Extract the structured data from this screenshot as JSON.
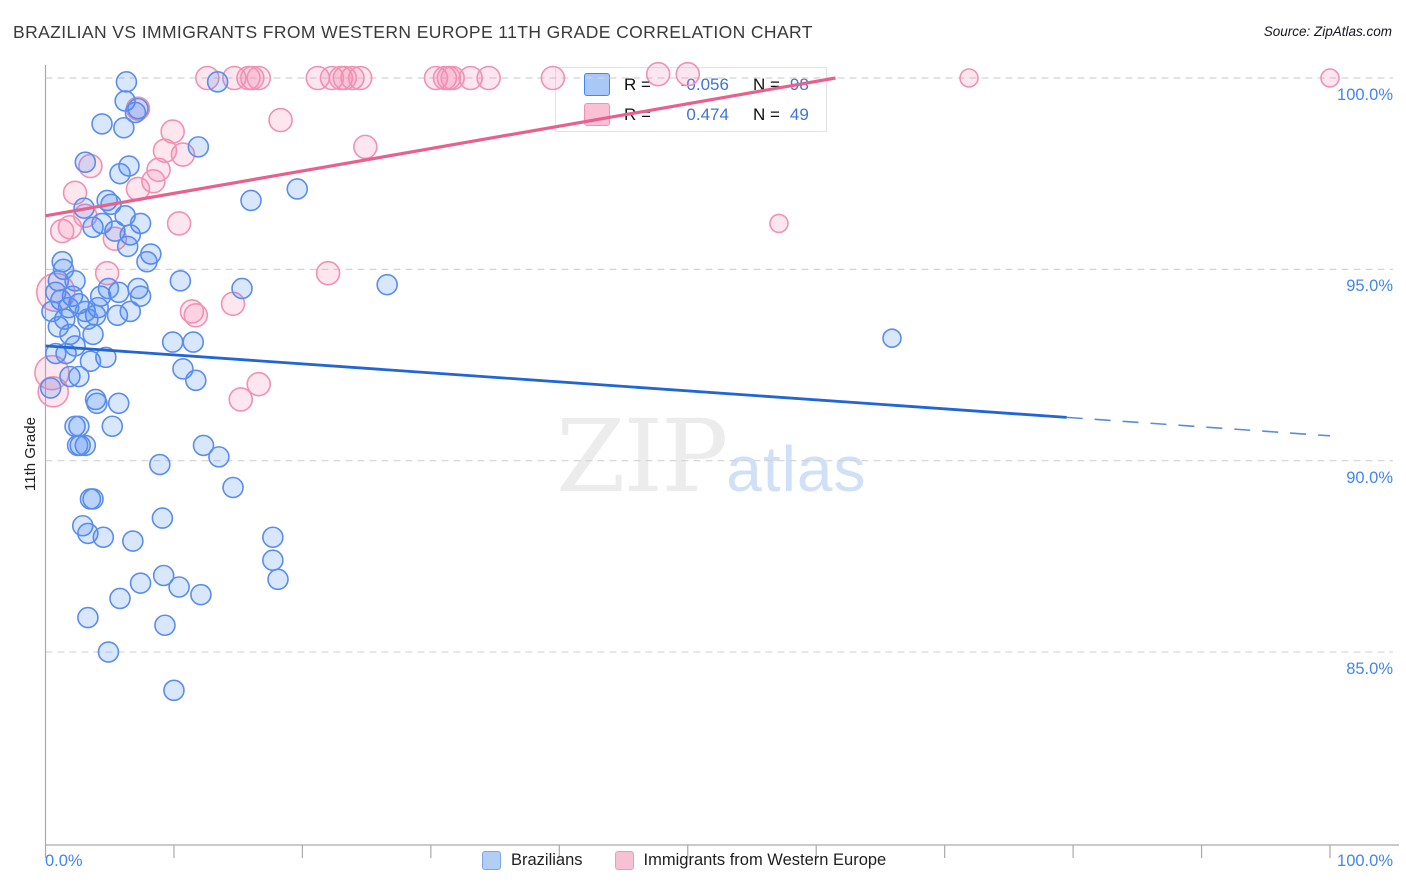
{
  "title": "BRAZILIAN VS IMMIGRANTS FROM WESTERN EUROPE 11TH GRADE CORRELATION CHART",
  "source": "Source: ZipAtlas.com",
  "watermark": {
    "zip": "ZIP",
    "atlas": "atlas"
  },
  "y_axis": {
    "label": "11th Grade",
    "tick_labels": [
      "100.0%",
      "95.0%",
      "90.0%",
      "85.0%"
    ]
  },
  "x_axis": {
    "tick_labels": [
      "0.0%",
      "100.0%"
    ]
  },
  "legend_box": {
    "rows": [
      {
        "r_label": "R =",
        "r_value": "-0.056",
        "n_label": "N =",
        "n_value": "98"
      },
      {
        "r_label": "R =",
        "r_value": "0.474",
        "n_label": "N =",
        "n_value": "49"
      }
    ]
  },
  "bottom_legend": {
    "items": [
      {
        "label": "Brazilians"
      },
      {
        "label": "Immigrants from Western Europe"
      }
    ]
  },
  "colors": {
    "axis_label_blue": "#4285f4",
    "value_blue": "#3e73da",
    "blue_stroke": "#5b8def",
    "blue_fill": "rgba(66,133,244,0.2)",
    "pink_stroke": "#f191b4",
    "pink_fill": "rgba(244,143,177,0.22)",
    "blue_trend": "#2166d3",
    "pink_trend": "#e8618c",
    "grid": "#d4d4d4",
    "axis": "#aaaaaa"
  },
  "chart_data": {
    "type": "scatter",
    "title": "BRAZILIAN VS IMMIGRANTS FROM WESTERN EUROPE 11TH GRADE CORRELATION CHART",
    "xlabel": "",
    "ylabel": "11th Grade",
    "xlim": [
      0,
      100
    ],
    "ylim": [
      80,
      101
    ],
    "x_ticks": [
      0,
      10,
      20,
      30,
      40,
      50,
      60,
      70,
      80,
      90,
      100
    ],
    "y_gridlines": [
      100,
      95,
      90,
      85
    ],
    "grid": "dashed-horizontal",
    "legend_position": "bottom-center",
    "series": [
      {
        "name": "Brazilians",
        "r": -0.056,
        "n": 98,
        "default_radius": 10,
        "points": [
          [
            6.3,
            99.9
          ],
          [
            13.4,
            99.9
          ],
          [
            6.2,
            99.4
          ],
          [
            7.2,
            99.2
          ],
          [
            7.0,
            99.1
          ],
          [
            4.4,
            98.8
          ],
          [
            6.1,
            98.7
          ],
          [
            11.9,
            98.2
          ],
          [
            3.1,
            97.8
          ],
          [
            6.5,
            97.7
          ],
          [
            5.8,
            97.5
          ],
          [
            4.8,
            96.8
          ],
          [
            3.0,
            96.6
          ],
          [
            5.1,
            96.7
          ],
          [
            6.2,
            96.4
          ],
          [
            7.4,
            96.2
          ],
          [
            5.4,
            96.0
          ],
          [
            6.6,
            95.9
          ],
          [
            3.7,
            96.1
          ],
          [
            4.4,
            96.2
          ],
          [
            6.4,
            95.6
          ],
          [
            8.2,
            95.4
          ],
          [
            16.0,
            96.8
          ],
          [
            19.6,
            97.1
          ],
          [
            26.6,
            94.6
          ],
          [
            1.3,
            95.2
          ],
          [
            1.4,
            95.0
          ],
          [
            1.0,
            94.7
          ],
          [
            2.3,
            94.7
          ],
          [
            0.8,
            94.4
          ],
          [
            2.1,
            94.3
          ],
          [
            2.6,
            94.1
          ],
          [
            7.2,
            94.5
          ],
          [
            7.4,
            94.3
          ],
          [
            5.7,
            94.4
          ],
          [
            4.3,
            94.3
          ],
          [
            1.8,
            94.0
          ],
          [
            3.1,
            93.9
          ],
          [
            4.1,
            94.0
          ],
          [
            5.6,
            93.8
          ],
          [
            3.9,
            93.8
          ],
          [
            1.0,
            93.5
          ],
          [
            1.9,
            93.3
          ],
          [
            3.7,
            93.3
          ],
          [
            10.5,
            94.7
          ],
          [
            11.5,
            93.1
          ],
          [
            9.9,
            93.1
          ],
          [
            0.8,
            92.8
          ],
          [
            1.6,
            92.8
          ],
          [
            4.7,
            92.7
          ],
          [
            1.9,
            92.2
          ],
          [
            2.6,
            92.2
          ],
          [
            0.4,
            91.9
          ],
          [
            3.9,
            91.6
          ],
          [
            4.0,
            91.5
          ],
          [
            5.7,
            91.5
          ],
          [
            10.7,
            92.4
          ],
          [
            11.7,
            92.1
          ],
          [
            15.3,
            94.5
          ],
          [
            7.9,
            95.2
          ],
          [
            1.2,
            94.2
          ],
          [
            3.3,
            93.7
          ],
          [
            2.3,
            93.0
          ],
          [
            4.9,
            94.5
          ],
          [
            1.5,
            93.7
          ],
          [
            3.5,
            92.6
          ],
          [
            0.5,
            93.9
          ],
          [
            6.6,
            93.9
          ],
          [
            2.3,
            90.9
          ],
          [
            2.6,
            90.9
          ],
          [
            5.2,
            90.9
          ],
          [
            2.7,
            90.4
          ],
          [
            3.1,
            90.4
          ],
          [
            2.5,
            90.4
          ],
          [
            12.3,
            90.4
          ],
          [
            13.5,
            90.1
          ],
          [
            8.9,
            89.9
          ],
          [
            14.6,
            89.3
          ],
          [
            3.5,
            89.0
          ],
          [
            3.7,
            89.0
          ],
          [
            2.9,
            88.3
          ],
          [
            3.3,
            88.1
          ],
          [
            4.5,
            88.0
          ],
          [
            6.8,
            87.9
          ],
          [
            9.1,
            88.5
          ],
          [
            17.7,
            88.0
          ],
          [
            17.7,
            87.4
          ],
          [
            18.1,
            86.9
          ],
          [
            9.2,
            87.0
          ],
          [
            7.4,
            86.8
          ],
          [
            10.4,
            86.7
          ],
          [
            12.1,
            86.5
          ],
          [
            5.8,
            86.4
          ],
          [
            3.3,
            85.9
          ],
          [
            9.3,
            85.7
          ],
          [
            4.9,
            85.0
          ],
          [
            10.0,
            84.0
          ],
          [
            65.9,
            93.2,
            9
          ]
        ]
      },
      {
        "name": "Immigrants from Western Europe",
        "r": 0.474,
        "n": 49,
        "default_radius": 11.5,
        "points": [
          [
            12.6,
            100
          ],
          [
            14.7,
            100
          ],
          [
            15.8,
            100
          ],
          [
            16.1,
            100
          ],
          [
            16.6,
            100
          ],
          [
            21.2,
            100
          ],
          [
            22.3,
            100
          ],
          [
            23.0,
            100
          ],
          [
            23.3,
            100
          ],
          [
            23.9,
            100
          ],
          [
            24.5,
            100
          ],
          [
            30.4,
            100
          ],
          [
            31.1,
            100
          ],
          [
            31.4,
            100
          ],
          [
            31.7,
            100
          ],
          [
            33.1,
            100
          ],
          [
            34.5,
            100
          ],
          [
            39.5,
            100
          ],
          [
            47.7,
            100.1
          ],
          [
            50.0,
            100.1
          ],
          [
            71.9,
            100,
            9
          ],
          [
            100,
            100,
            9
          ],
          [
            7.2,
            99.2
          ],
          [
            9.9,
            98.6
          ],
          [
            9.3,
            98.1
          ],
          [
            10.7,
            98.0
          ],
          [
            18.3,
            98.9
          ],
          [
            24.9,
            98.2
          ],
          [
            8.8,
            97.6
          ],
          [
            8.4,
            97.3
          ],
          [
            7.2,
            97.1
          ],
          [
            3.5,
            97.7
          ],
          [
            2.3,
            97.0
          ],
          [
            3.1,
            96.4
          ],
          [
            1.3,
            96.0
          ],
          [
            1.9,
            96.1
          ],
          [
            5.4,
            95.8
          ],
          [
            10.4,
            96.2
          ],
          [
            4.8,
            94.9
          ],
          [
            11.4,
            93.9
          ],
          [
            11.7,
            93.8
          ],
          [
            14.6,
            94.1
          ],
          [
            22.0,
            94.9
          ],
          [
            0.8,
            94.4,
            19
          ],
          [
            0.5,
            92.3,
            17
          ],
          [
            0.6,
            91.8,
            15
          ],
          [
            16.6,
            92.0
          ],
          [
            15.2,
            91.6
          ],
          [
            57.1,
            96.2,
            9
          ]
        ]
      }
    ],
    "trend_lines": [
      {
        "series": "Brazilians",
        "x0": 0,
        "y0": 93.0,
        "x1": 100,
        "y1": 90.65,
        "solid_until_x": 79.5
      },
      {
        "series": "Immigrants from Western Europe",
        "x0": 0,
        "y0": 96.4,
        "x1": 61.5,
        "y1": 100.0
      }
    ]
  }
}
